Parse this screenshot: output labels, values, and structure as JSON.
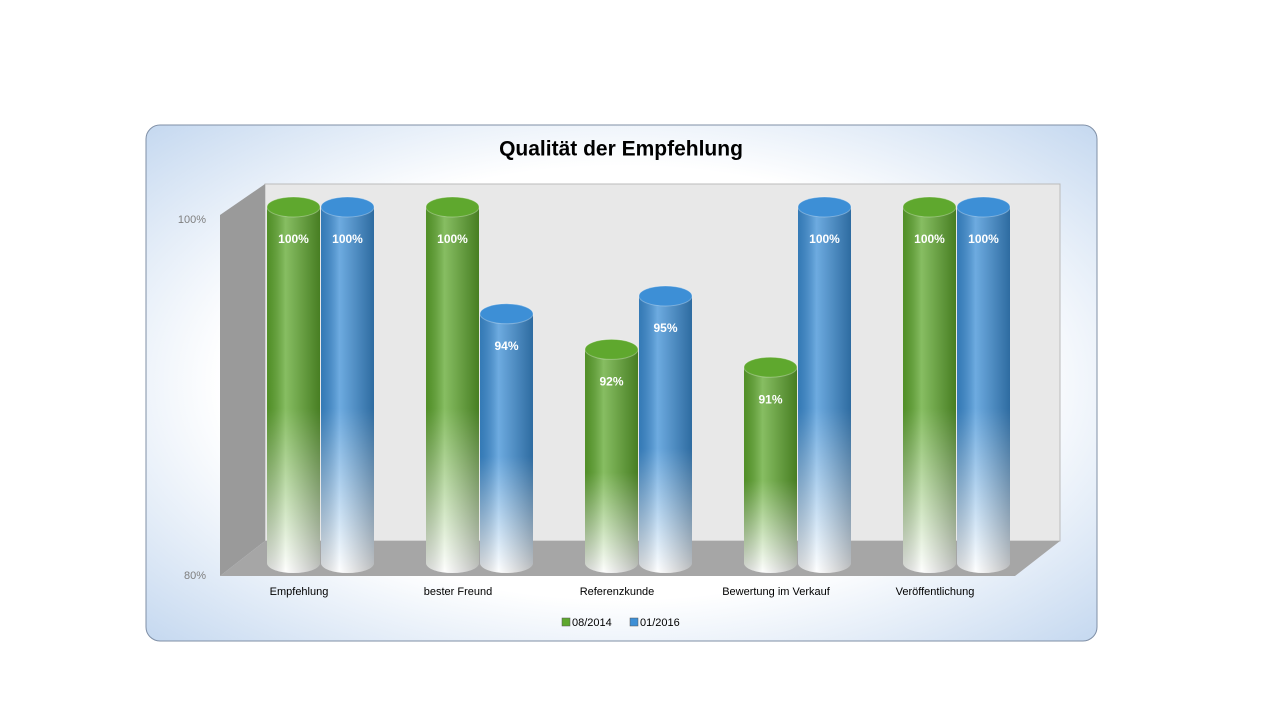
{
  "chart_data": {
    "type": "bar3d-cylinder",
    "title": "Qualität der Empfehlung",
    "categories": [
      "Empfehlung",
      "bester Freund",
      "Referenzkunde",
      "Bewertung im Verkauf",
      "Veröffentlichung"
    ],
    "series": [
      {
        "name": "08/2014",
        "color": "#5fa82e",
        "values": [
          100,
          100,
          92,
          91,
          100
        ],
        "value_labels": [
          "100%",
          "100%",
          "92%",
          "91%",
          "100%"
        ]
      },
      {
        "name": "01/2016",
        "color": "#3d8fd6",
        "values": [
          100,
          94,
          95,
          100,
          100
        ],
        "value_labels": [
          "100%",
          "94%",
          "95%",
          "100%",
          "100%"
        ]
      }
    ],
    "ylim": [
      80,
      100
    ],
    "yticks": [
      {
        "value": 80,
        "label": "80%"
      },
      {
        "value": 100,
        "label": "100%"
      }
    ],
    "grid": false,
    "legend": "bottom"
  }
}
